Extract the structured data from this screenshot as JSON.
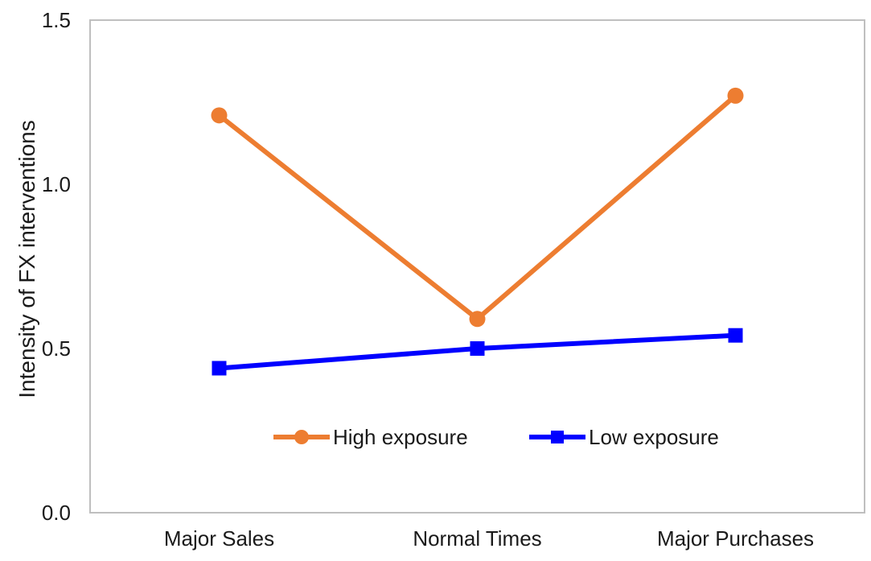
{
  "chart_data": {
    "type": "line",
    "title": "",
    "xlabel": "",
    "ylabel": "Intensity  of FX interventions",
    "categories": [
      "Major Sales",
      "Normal Times",
      "Major Purchases"
    ],
    "ylim": [
      0.0,
      1.5
    ],
    "yticks": [
      0.0,
      0.5,
      1.0,
      1.5
    ],
    "ytick_labels": [
      "0.0",
      "0.5",
      "1.0",
      "1.5"
    ],
    "grid": false,
    "legend_position": "center",
    "series": [
      {
        "name": "High exposure",
        "color": "#ed7d31",
        "marker": "circle",
        "values": [
          1.21,
          0.59,
          1.27
        ]
      },
      {
        "name": "Low exposure",
        "color": "#0000ff",
        "marker": "square",
        "values": [
          0.44,
          0.5,
          0.54
        ]
      }
    ]
  }
}
